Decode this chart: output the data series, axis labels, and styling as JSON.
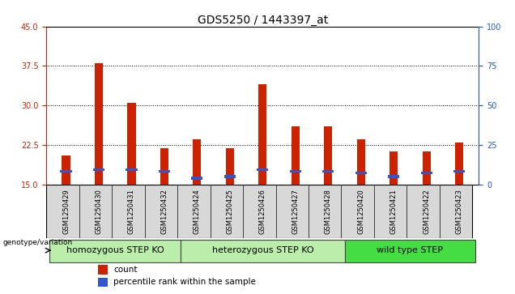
{
  "title": "GDS5250 / 1443397_at",
  "samples": [
    "GSM1250429",
    "GSM1250430",
    "GSM1250431",
    "GSM1250432",
    "GSM1250424",
    "GSM1250425",
    "GSM1250426",
    "GSM1250427",
    "GSM1250428",
    "GSM1250420",
    "GSM1250421",
    "GSM1250422",
    "GSM1250423"
  ],
  "red_values": [
    20.5,
    38.0,
    30.5,
    21.8,
    23.5,
    21.8,
    34.0,
    26.0,
    26.0,
    23.5,
    21.2,
    21.2,
    23.0
  ],
  "blue_values": [
    17.5,
    17.8,
    17.8,
    17.5,
    16.2,
    16.5,
    17.8,
    17.5,
    17.5,
    17.2,
    16.5,
    17.2,
    17.5
  ],
  "groups": [
    {
      "label": "homozygous STEP KO",
      "start": 0,
      "end": 3
    },
    {
      "label": "heterozygous STEP KO",
      "start": 4,
      "end": 8
    },
    {
      "label": "wild type STEP",
      "start": 9,
      "end": 12
    }
  ],
  "ylim_left": [
    15,
    45
  ],
  "ylim_right": [
    0,
    100
  ],
  "yticks_left": [
    15,
    22.5,
    30,
    37.5,
    45
  ],
  "yticks_right": [
    0,
    25,
    50,
    75,
    100
  ],
  "bar_color": "#cc2200",
  "marker_color": "#3355cc",
  "title_fontsize": 10,
  "tick_fontsize": 7,
  "group_label_fontsize": 8,
  "legend_fontsize": 7.5,
  "tick_color_left": "#cc2200",
  "tick_color_right": "#2255cc",
  "plot_bg": "#ffffff",
  "xticklabel_bg": "#d8d8d8",
  "group_colors": [
    "#bbeeaa",
    "#bbeeaa",
    "#44dd44"
  ],
  "grid_yticks": [
    22.5,
    30,
    37.5
  ],
  "legend_items": [
    "count",
    "percentile rank within the sample"
  ]
}
